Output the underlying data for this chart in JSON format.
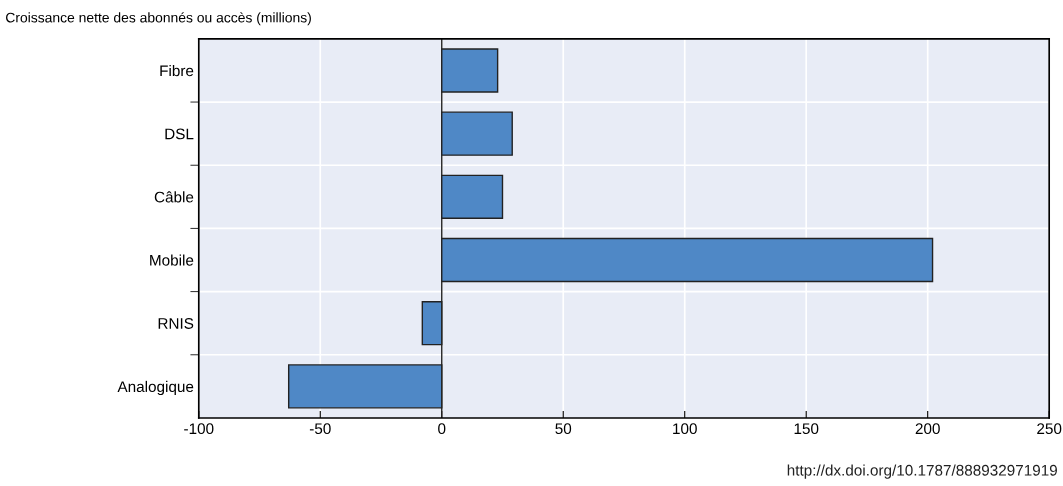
{
  "chart_data": {
    "type": "bar",
    "orientation": "horizontal",
    "title": "Croissance nette des abonnés ou accès (millions)",
    "categories": [
      "Fibre",
      "DSL",
      "Câble",
      "Mobile",
      "RNIS",
      "Analogique"
    ],
    "values": [
      23,
      29,
      25,
      202,
      -8,
      -63
    ],
    "color": "#4f88c6",
    "xlim": [
      -100,
      250
    ],
    "xticks": [
      -100,
      -50,
      0,
      50,
      100,
      150,
      200,
      250
    ],
    "grid": true,
    "annotations": [
      "http://dx.doi.org/10.1787/888932971919"
    ]
  }
}
